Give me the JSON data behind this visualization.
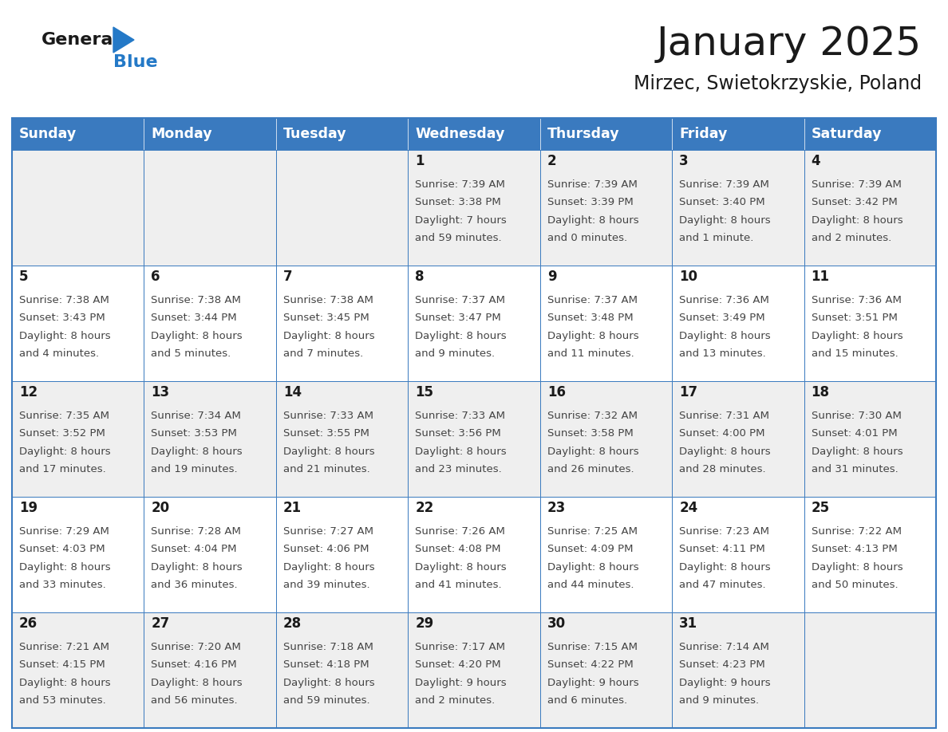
{
  "title": "January 2025",
  "subtitle": "Mirzec, Swietokrzyskie, Poland",
  "days_of_week": [
    "Sunday",
    "Monday",
    "Tuesday",
    "Wednesday",
    "Thursday",
    "Friday",
    "Saturday"
  ],
  "header_bg": "#3a7abf",
  "header_text_color": "#ffffff",
  "row_bg_colors": [
    "#efefef",
    "#ffffff"
  ],
  "grid_color": "#3a7abf",
  "title_color": "#1a1a1a",
  "subtitle_color": "#1a1a1a",
  "day_num_color": "#1a1a1a",
  "cell_text_color": "#444444",
  "general_text_color": "#1a1a1a",
  "blue_color": "#2479c7",
  "calendar": [
    [
      null,
      null,
      null,
      {
        "day": 1,
        "sunrise": "7:39 AM",
        "sunset": "3:38 PM",
        "dl1": "Daylight: 7 hours",
        "dl2": "and 59 minutes."
      },
      {
        "day": 2,
        "sunrise": "7:39 AM",
        "sunset": "3:39 PM",
        "dl1": "Daylight: 8 hours",
        "dl2": "and 0 minutes."
      },
      {
        "day": 3,
        "sunrise": "7:39 AM",
        "sunset": "3:40 PM",
        "dl1": "Daylight: 8 hours",
        "dl2": "and 1 minute."
      },
      {
        "day": 4,
        "sunrise": "7:39 AM",
        "sunset": "3:42 PM",
        "dl1": "Daylight: 8 hours",
        "dl2": "and 2 minutes."
      }
    ],
    [
      {
        "day": 5,
        "sunrise": "7:38 AM",
        "sunset": "3:43 PM",
        "dl1": "Daylight: 8 hours",
        "dl2": "and 4 minutes."
      },
      {
        "day": 6,
        "sunrise": "7:38 AM",
        "sunset": "3:44 PM",
        "dl1": "Daylight: 8 hours",
        "dl2": "and 5 minutes."
      },
      {
        "day": 7,
        "sunrise": "7:38 AM",
        "sunset": "3:45 PM",
        "dl1": "Daylight: 8 hours",
        "dl2": "and 7 minutes."
      },
      {
        "day": 8,
        "sunrise": "7:37 AM",
        "sunset": "3:47 PM",
        "dl1": "Daylight: 8 hours",
        "dl2": "and 9 minutes."
      },
      {
        "day": 9,
        "sunrise": "7:37 AM",
        "sunset": "3:48 PM",
        "dl1": "Daylight: 8 hours",
        "dl2": "and 11 minutes."
      },
      {
        "day": 10,
        "sunrise": "7:36 AM",
        "sunset": "3:49 PM",
        "dl1": "Daylight: 8 hours",
        "dl2": "and 13 minutes."
      },
      {
        "day": 11,
        "sunrise": "7:36 AM",
        "sunset": "3:51 PM",
        "dl1": "Daylight: 8 hours",
        "dl2": "and 15 minutes."
      }
    ],
    [
      {
        "day": 12,
        "sunrise": "7:35 AM",
        "sunset": "3:52 PM",
        "dl1": "Daylight: 8 hours",
        "dl2": "and 17 minutes."
      },
      {
        "day": 13,
        "sunrise": "7:34 AM",
        "sunset": "3:53 PM",
        "dl1": "Daylight: 8 hours",
        "dl2": "and 19 minutes."
      },
      {
        "day": 14,
        "sunrise": "7:33 AM",
        "sunset": "3:55 PM",
        "dl1": "Daylight: 8 hours",
        "dl2": "and 21 minutes."
      },
      {
        "day": 15,
        "sunrise": "7:33 AM",
        "sunset": "3:56 PM",
        "dl1": "Daylight: 8 hours",
        "dl2": "and 23 minutes."
      },
      {
        "day": 16,
        "sunrise": "7:32 AM",
        "sunset": "3:58 PM",
        "dl1": "Daylight: 8 hours",
        "dl2": "and 26 minutes."
      },
      {
        "day": 17,
        "sunrise": "7:31 AM",
        "sunset": "4:00 PM",
        "dl1": "Daylight: 8 hours",
        "dl2": "and 28 minutes."
      },
      {
        "day": 18,
        "sunrise": "7:30 AM",
        "sunset": "4:01 PM",
        "dl1": "Daylight: 8 hours",
        "dl2": "and 31 minutes."
      }
    ],
    [
      {
        "day": 19,
        "sunrise": "7:29 AM",
        "sunset": "4:03 PM",
        "dl1": "Daylight: 8 hours",
        "dl2": "and 33 minutes."
      },
      {
        "day": 20,
        "sunrise": "7:28 AM",
        "sunset": "4:04 PM",
        "dl1": "Daylight: 8 hours",
        "dl2": "and 36 minutes."
      },
      {
        "day": 21,
        "sunrise": "7:27 AM",
        "sunset": "4:06 PM",
        "dl1": "Daylight: 8 hours",
        "dl2": "and 39 minutes."
      },
      {
        "day": 22,
        "sunrise": "7:26 AM",
        "sunset": "4:08 PM",
        "dl1": "Daylight: 8 hours",
        "dl2": "and 41 minutes."
      },
      {
        "day": 23,
        "sunrise": "7:25 AM",
        "sunset": "4:09 PM",
        "dl1": "Daylight: 8 hours",
        "dl2": "and 44 minutes."
      },
      {
        "day": 24,
        "sunrise": "7:23 AM",
        "sunset": "4:11 PM",
        "dl1": "Daylight: 8 hours",
        "dl2": "and 47 minutes."
      },
      {
        "day": 25,
        "sunrise": "7:22 AM",
        "sunset": "4:13 PM",
        "dl1": "Daylight: 8 hours",
        "dl2": "and 50 minutes."
      }
    ],
    [
      {
        "day": 26,
        "sunrise": "7:21 AM",
        "sunset": "4:15 PM",
        "dl1": "Daylight: 8 hours",
        "dl2": "and 53 minutes."
      },
      {
        "day": 27,
        "sunrise": "7:20 AM",
        "sunset": "4:16 PM",
        "dl1": "Daylight: 8 hours",
        "dl2": "and 56 minutes."
      },
      {
        "day": 28,
        "sunrise": "7:18 AM",
        "sunset": "4:18 PM",
        "dl1": "Daylight: 8 hours",
        "dl2": "and 59 minutes."
      },
      {
        "day": 29,
        "sunrise": "7:17 AM",
        "sunset": "4:20 PM",
        "dl1": "Daylight: 9 hours",
        "dl2": "and 2 minutes."
      },
      {
        "day": 30,
        "sunrise": "7:15 AM",
        "sunset": "4:22 PM",
        "dl1": "Daylight: 9 hours",
        "dl2": "and 6 minutes."
      },
      {
        "day": 31,
        "sunrise": "7:14 AM",
        "sunset": "4:23 PM",
        "dl1": "Daylight: 9 hours",
        "dl2": "and 9 minutes."
      },
      null
    ]
  ]
}
